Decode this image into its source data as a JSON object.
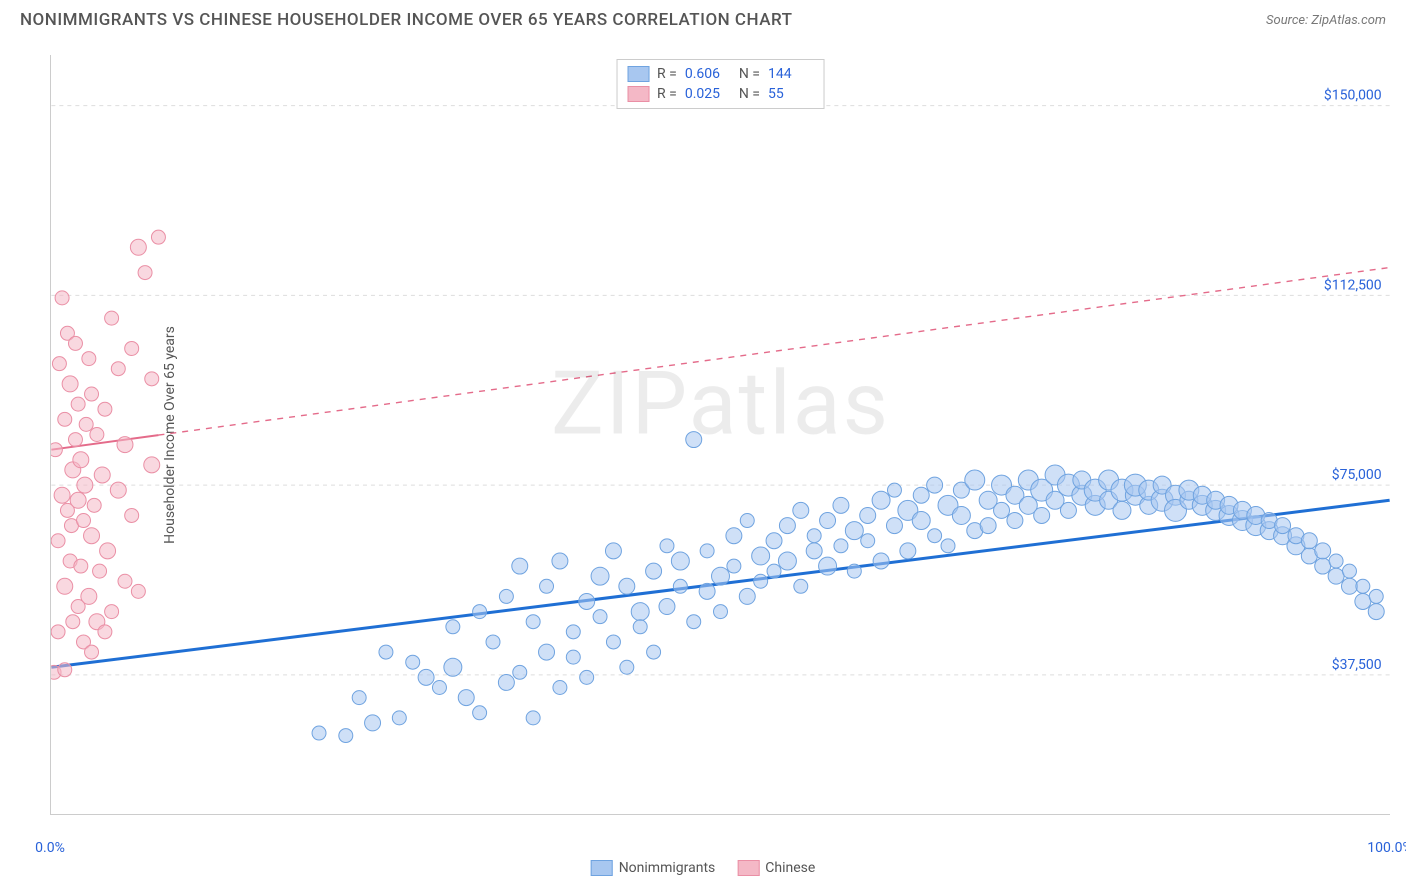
{
  "header": {
    "title": "NONIMMIGRANTS VS CHINESE HOUSEHOLDER INCOME OVER 65 YEARS CORRELATION CHART",
    "source": "Source: ZipAtlas.com"
  },
  "chart": {
    "type": "scatter",
    "ylabel": "Householder Income Over 65 years",
    "xlim": [
      0,
      100
    ],
    "ylim": [
      10000,
      160000
    ],
    "yticks": [
      {
        "value": 37500,
        "label": "$37,500"
      },
      {
        "value": 75000,
        "label": "$75,000"
      },
      {
        "value": 112500,
        "label": "$112,500"
      },
      {
        "value": 150000,
        "label": "$150,000"
      }
    ],
    "xticks": [
      0,
      10,
      20,
      30,
      40,
      50,
      60,
      70,
      80,
      90,
      100
    ],
    "xtick_labels": {
      "start": "0.0%",
      "end": "100.0%"
    },
    "grid_color": "#dddddd",
    "border_color": "#cccccc",
    "background_color": "#ffffff",
    "watermark": "ZIPatlas",
    "series": [
      {
        "name": "Nonimmigrants",
        "color_fill": "#a8c7f0",
        "color_stroke": "#6fa3e0",
        "fill_opacity": 0.55,
        "marker_radius_base": 8,
        "regression": {
          "x1": 0,
          "y1": 39000,
          "x2": 100,
          "y2": 72000,
          "color": "#1f6fd4",
          "width": 3,
          "solid_until": 100
        },
        "stats": {
          "R": "0.606",
          "N": "144"
        },
        "points": [
          [
            20,
            26000,
            7
          ],
          [
            22,
            25500,
            7
          ],
          [
            23,
            33000,
            7
          ],
          [
            24,
            28000,
            8
          ],
          [
            25,
            42000,
            7
          ],
          [
            26,
            29000,
            7
          ],
          [
            27,
            40000,
            7
          ],
          [
            28,
            37000,
            8
          ],
          [
            29,
            35000,
            7
          ],
          [
            30,
            39000,
            9
          ],
          [
            30,
            47000,
            7
          ],
          [
            31,
            33000,
            8
          ],
          [
            32,
            50000,
            7
          ],
          [
            32,
            30000,
            7
          ],
          [
            33,
            44000,
            7
          ],
          [
            34,
            36000,
            8
          ],
          [
            34,
            53000,
            7
          ],
          [
            35,
            38000,
            7
          ],
          [
            35,
            59000,
            8
          ],
          [
            36,
            29000,
            7
          ],
          [
            36,
            48000,
            7
          ],
          [
            37,
            42000,
            8
          ],
          [
            37,
            55000,
            7
          ],
          [
            38,
            35000,
            7
          ],
          [
            38,
            60000,
            8
          ],
          [
            39,
            46000,
            7
          ],
          [
            39,
            41000,
            7
          ],
          [
            40,
            52000,
            8
          ],
          [
            40,
            37000,
            7
          ],
          [
            41,
            57000,
            9
          ],
          [
            41,
            49000,
            7
          ],
          [
            42,
            44000,
            7
          ],
          [
            42,
            62000,
            8
          ],
          [
            43,
            39000,
            7
          ],
          [
            43,
            55000,
            8
          ],
          [
            44,
            50000,
            9
          ],
          [
            44,
            47000,
            7
          ],
          [
            45,
            58000,
            8
          ],
          [
            45,
            42000,
            7
          ],
          [
            46,
            63000,
            7
          ],
          [
            46,
            51000,
            8
          ],
          [
            47,
            55000,
            7
          ],
          [
            47,
            60000,
            9
          ],
          [
            48,
            48000,
            7
          ],
          [
            48,
            84000,
            8
          ],
          [
            49,
            54000,
            8
          ],
          [
            49,
            62000,
            7
          ],
          [
            50,
            57000,
            9
          ],
          [
            50,
            50000,
            7
          ],
          [
            51,
            65000,
            8
          ],
          [
            51,
            59000,
            7
          ],
          [
            52,
            53000,
            8
          ],
          [
            52,
            68000,
            7
          ],
          [
            53,
            61000,
            9
          ],
          [
            53,
            56000,
            7
          ],
          [
            54,
            64000,
            8
          ],
          [
            54,
            58000,
            7
          ],
          [
            55,
            67000,
            8
          ],
          [
            55,
            60000,
            9
          ],
          [
            56,
            55000,
            7
          ],
          [
            56,
            70000,
            8
          ],
          [
            57,
            62000,
            8
          ],
          [
            57,
            65000,
            7
          ],
          [
            58,
            59000,
            9
          ],
          [
            58,
            68000,
            8
          ],
          [
            59,
            63000,
            7
          ],
          [
            59,
            71000,
            8
          ],
          [
            60,
            66000,
            9
          ],
          [
            60,
            58000,
            7
          ],
          [
            61,
            69000,
            8
          ],
          [
            61,
            64000,
            7
          ],
          [
            62,
            72000,
            9
          ],
          [
            62,
            60000,
            8
          ],
          [
            63,
            67000,
            8
          ],
          [
            63,
            74000,
            7
          ],
          [
            64,
            70000,
            10
          ],
          [
            64,
            62000,
            8
          ],
          [
            65,
            73000,
            8
          ],
          [
            65,
            68000,
            9
          ],
          [
            66,
            65000,
            7
          ],
          [
            66,
            75000,
            8
          ],
          [
            67,
            71000,
            10
          ],
          [
            67,
            63000,
            7
          ],
          [
            68,
            74000,
            8
          ],
          [
            68,
            69000,
            9
          ],
          [
            69,
            66000,
            8
          ],
          [
            69,
            76000,
            10
          ],
          [
            70,
            72000,
            9
          ],
          [
            70,
            67000,
            8
          ],
          [
            71,
            75000,
            10
          ],
          [
            71,
            70000,
            8
          ],
          [
            72,
            73000,
            9
          ],
          [
            72,
            68000,
            8
          ],
          [
            73,
            76000,
            10
          ],
          [
            73,
            71000,
            9
          ],
          [
            74,
            74000,
            11
          ],
          [
            74,
            69000,
            8
          ],
          [
            75,
            77000,
            10
          ],
          [
            75,
            72000,
            9
          ],
          [
            76,
            75000,
            11
          ],
          [
            76,
            70000,
            8
          ],
          [
            77,
            73000,
            10
          ],
          [
            77,
            76000,
            9
          ],
          [
            78,
            71000,
            10
          ],
          [
            78,
            74000,
            11
          ],
          [
            79,
            72000,
            9
          ],
          [
            79,
            76000,
            10
          ],
          [
            80,
            74000,
            11
          ],
          [
            80,
            70000,
            9
          ],
          [
            81,
            73000,
            10
          ],
          [
            81,
            75000,
            11
          ],
          [
            82,
            71000,
            9
          ],
          [
            82,
            74000,
            10
          ],
          [
            83,
            72000,
            11
          ],
          [
            83,
            75000,
            9
          ],
          [
            84,
            73000,
            10
          ],
          [
            84,
            70000,
            11
          ],
          [
            85,
            72000,
            9
          ],
          [
            85,
            74000,
            10
          ],
          [
            86,
            71000,
            10
          ],
          [
            86,
            73000,
            9
          ],
          [
            87,
            70000,
            10
          ],
          [
            87,
            72000,
            9
          ],
          [
            88,
            69000,
            10
          ],
          [
            88,
            71000,
            9
          ],
          [
            89,
            68000,
            10
          ],
          [
            89,
            70000,
            9
          ],
          [
            90,
            67000,
            10
          ],
          [
            90,
            69000,
            9
          ],
          [
            91,
            66000,
            9
          ],
          [
            91,
            68000,
            8
          ],
          [
            92,
            65000,
            9
          ],
          [
            92,
            67000,
            8
          ],
          [
            93,
            63000,
            9
          ],
          [
            93,
            65000,
            8
          ],
          [
            94,
            61000,
            8
          ],
          [
            94,
            64000,
            8
          ],
          [
            95,
            59000,
            8
          ],
          [
            95,
            62000,
            8
          ],
          [
            96,
            57000,
            8
          ],
          [
            96,
            60000,
            7
          ],
          [
            97,
            55000,
            8
          ],
          [
            97,
            58000,
            7
          ],
          [
            98,
            52000,
            8
          ],
          [
            98,
            55000,
            7
          ],
          [
            99,
            50000,
            8
          ],
          [
            99,
            53000,
            7
          ]
        ]
      },
      {
        "name": "Chinese",
        "color_fill": "#f4b8c6",
        "color_stroke": "#ea8fa5",
        "fill_opacity": 0.55,
        "marker_radius_base": 8,
        "regression": {
          "x1": 0,
          "y1": 82000,
          "x2": 100,
          "y2": 118000,
          "color": "#e46b8a",
          "width": 2,
          "solid_until": 8
        },
        "stats": {
          "R": "0.025",
          "N": "55"
        },
        "points": [
          [
            0.3,
            82000,
            7
          ],
          [
            0.5,
            64000,
            7
          ],
          [
            0.6,
            99000,
            7
          ],
          [
            0.8,
            73000,
            8
          ],
          [
            0.8,
            112000,
            7
          ],
          [
            1.0,
            88000,
            7
          ],
          [
            1.0,
            55000,
            8
          ],
          [
            1.2,
            70000,
            7
          ],
          [
            1.2,
            105000,
            7
          ],
          [
            1.4,
            95000,
            8
          ],
          [
            1.4,
            60000,
            7
          ],
          [
            1.5,
            67000,
            7
          ],
          [
            1.6,
            78000,
            8
          ],
          [
            1.6,
            48000,
            7
          ],
          [
            1.8,
            84000,
            7
          ],
          [
            1.8,
            103000,
            7
          ],
          [
            2.0,
            72000,
            8
          ],
          [
            2.0,
            51000,
            7
          ],
          [
            2.0,
            91000,
            7
          ],
          [
            2.2,
            59000,
            7
          ],
          [
            2.2,
            80000,
            8
          ],
          [
            2.4,
            44000,
            7
          ],
          [
            2.4,
            68000,
            7
          ],
          [
            2.5,
            75000,
            8
          ],
          [
            2.6,
            87000,
            7
          ],
          [
            2.8,
            53000,
            8
          ],
          [
            2.8,
            100000,
            7
          ],
          [
            3.0,
            42000,
            7
          ],
          [
            3.0,
            65000,
            8
          ],
          [
            3.0,
            93000,
            7
          ],
          [
            3.2,
            71000,
            7
          ],
          [
            3.4,
            48000,
            8
          ],
          [
            3.4,
            85000,
            7
          ],
          [
            3.6,
            58000,
            7
          ],
          [
            3.8,
            77000,
            8
          ],
          [
            4.0,
            46000,
            7
          ],
          [
            4.0,
            90000,
            7
          ],
          [
            4.2,
            62000,
            8
          ],
          [
            4.5,
            108000,
            7
          ],
          [
            4.5,
            50000,
            7
          ],
          [
            5.0,
            74000,
            8
          ],
          [
            5.0,
            98000,
            7
          ],
          [
            5.5,
            56000,
            7
          ],
          [
            5.5,
            83000,
            8
          ],
          [
            6.0,
            69000,
            7
          ],
          [
            6.0,
            102000,
            7
          ],
          [
            6.5,
            122000,
            8
          ],
          [
            6.5,
            54000,
            7
          ],
          [
            7.0,
            117000,
            7
          ],
          [
            7.5,
            79000,
            8
          ],
          [
            7.5,
            96000,
            7
          ],
          [
            8.0,
            124000,
            7
          ],
          [
            0.2,
            38000,
            7
          ],
          [
            1.0,
            38500,
            7
          ],
          [
            0.5,
            46000,
            7
          ]
        ]
      }
    ],
    "bottom_legend": [
      {
        "label": "Nonimmigrants",
        "fill": "#a8c7f0",
        "stroke": "#6fa3e0"
      },
      {
        "label": "Chinese",
        "fill": "#f4b8c6",
        "stroke": "#ea8fa5"
      }
    ]
  }
}
